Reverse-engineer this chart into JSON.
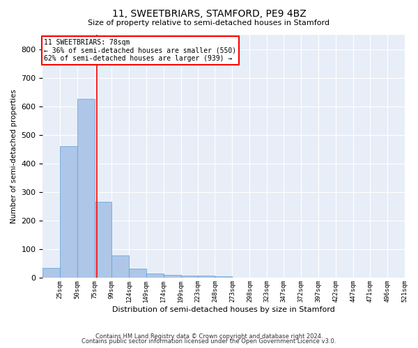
{
  "title": "11, SWEETBRIARS, STAMFORD, PE9 4BZ",
  "subtitle": "Size of property relative to semi-detached houses in Stamford",
  "xlabel": "Distribution of semi-detached houses by size in Stamford",
  "ylabel": "Number of semi-detached properties",
  "property_label": "11 SWEETBRIARS: 78sqm",
  "pct_smaller": 36,
  "pct_larger": 62,
  "count_smaller": 550,
  "count_larger": 939,
  "bin_labels": [
    "25sqm",
    "50sqm",
    "75sqm",
    "99sqm",
    "124sqm",
    "149sqm",
    "174sqm",
    "199sqm",
    "223sqm",
    "248sqm",
    "273sqm",
    "298sqm",
    "323sqm",
    "347sqm",
    "372sqm",
    "397sqm",
    "422sqm",
    "447sqm",
    "471sqm",
    "496sqm",
    "521sqm"
  ],
  "bin_edges": [
    0,
    25,
    50,
    75,
    99,
    124,
    149,
    174,
    199,
    223,
    248,
    273,
    298,
    323,
    347,
    372,
    397,
    422,
    447,
    471,
    496,
    521
  ],
  "bar_heights": [
    35,
    460,
    625,
    265,
    80,
    33,
    15,
    10,
    9,
    9,
    5,
    0,
    0,
    0,
    0,
    0,
    0,
    0,
    0,
    0,
    0
  ],
  "bar_color": "#aec6e8",
  "bar_edge_color": "#5a9fd4",
  "vline_color": "red",
  "vline_x": 78,
  "annotation_box_color": "#ffffff",
  "annotation_box_edge": "red",
  "bg_color": "#e8eef8",
  "ylim": [
    0,
    850
  ],
  "yticks": [
    0,
    100,
    200,
    300,
    400,
    500,
    600,
    700,
    800
  ],
  "footer_line1": "Contains HM Land Registry data © Crown copyright and database right 2024.",
  "footer_line2": "Contains public sector information licensed under the Open Government Licence v3.0."
}
